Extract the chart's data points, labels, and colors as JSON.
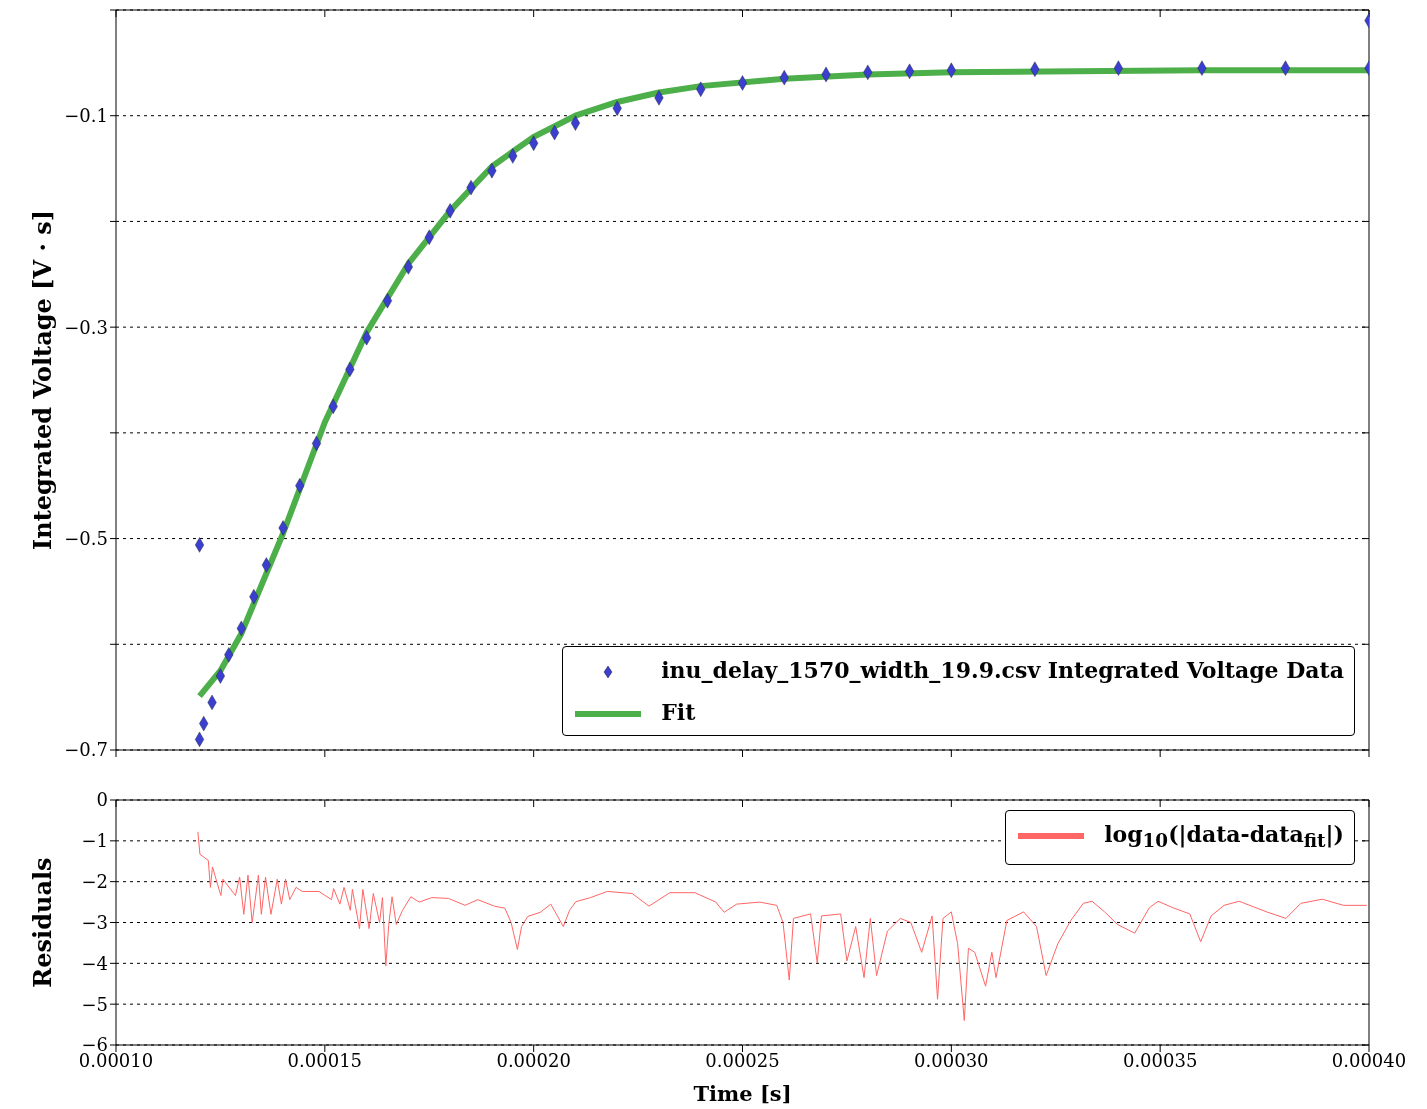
{
  "chart_data": [
    {
      "type": "scatter",
      "ylabel": "Integrated Voltage [V · s]",
      "xlim": [
        0.0001,
        0.0004
      ],
      "xticks": [
        0.0001,
        0.00015,
        0.0002,
        0.00025,
        0.0003,
        0.00035,
        0.0004
      ],
      "ylim": [
        -0.7,
        0
      ],
      "yticks": [
        {
          "value": -0.7,
          "label": "−0.7"
        },
        {
          "value": -0.6,
          "label": null
        },
        {
          "value": -0.5,
          "label": "−0.5"
        },
        {
          "value": -0.4,
          "label": null
        },
        {
          "value": -0.3,
          "label": "−0.3"
        },
        {
          "value": -0.2,
          "label": null
        },
        {
          "value": -0.1,
          "label": "−0.1"
        },
        {
          "value": 0,
          "label": null
        }
      ],
      "grid": "y",
      "legend": "bottom right",
      "tick_labels": "y",
      "series": [
        {
          "name": "inu_delay_1570_width_19.9.csv Integrated Voltage Data",
          "type": "scatter",
          "marker": "diamond",
          "color": "#3a3fd0",
          "x": [
            0.00012,
            0.00012,
            0.000121,
            0.000123,
            0.000125,
            0.000127,
            0.00013,
            0.000133,
            0.000136,
            0.00014,
            0.000144,
            0.000148,
            0.000152,
            0.000156,
            0.00016,
            0.000165,
            0.00017,
            0.000175,
            0.00018,
            0.000185,
            0.00019,
            0.000195,
            0.0002,
            0.000205,
            0.00021,
            0.00022,
            0.00023,
            0.00024,
            0.00025,
            0.00026,
            0.00027,
            0.00028,
            0.00029,
            0.0003,
            0.00032,
            0.00034,
            0.00036,
            0.00038,
            0.0004,
            0.0004
          ],
          "values": [
            -0.506,
            -0.69,
            -0.675,
            -0.655,
            -0.63,
            -0.61,
            -0.585,
            -0.555,
            -0.525,
            -0.49,
            -0.45,
            -0.41,
            -0.375,
            -0.34,
            -0.31,
            -0.275,
            -0.243,
            -0.215,
            -0.19,
            -0.168,
            -0.152,
            -0.138,
            -0.126,
            -0.116,
            -0.107,
            -0.093,
            -0.083,
            -0.075,
            -0.069,
            -0.064,
            -0.061,
            -0.059,
            -0.058,
            -0.057,
            -0.056,
            -0.055,
            -0.055,
            -0.055,
            -0.055,
            -0.01
          ]
        },
        {
          "name": "Fit",
          "type": "line",
          "color": "#4daf4a",
          "x": [
            0.00012,
            0.000125,
            0.00013,
            0.00014,
            0.00015,
            0.00016,
            0.00017,
            0.00018,
            0.00019,
            0.0002,
            0.00021,
            0.00022,
            0.00023,
            0.00024,
            0.00026,
            0.00028,
            0.0003,
            0.00033,
            0.00036,
            0.0004
          ],
          "values": [
            -0.649,
            -0.625,
            -0.59,
            -0.495,
            -0.39,
            -0.305,
            -0.24,
            -0.19,
            -0.148,
            -0.12,
            -0.1,
            -0.087,
            -0.078,
            -0.072,
            -0.065,
            -0.061,
            -0.059,
            -0.058,
            -0.057,
            -0.057
          ]
        }
      ]
    },
    {
      "type": "line",
      "xlabel": "Time [s]",
      "ylabel": "Residuals",
      "xlim": [
        0.0001,
        0.0004
      ],
      "xticks": [
        {
          "value": 0.0001,
          "label": "0.00010"
        },
        {
          "value": 0.00015,
          "label": "0.00015"
        },
        {
          "value": 0.0002,
          "label": "0.00020"
        },
        {
          "value": 0.00025,
          "label": "0.00025"
        },
        {
          "value": 0.0003,
          "label": "0.00030"
        },
        {
          "value": 0.00035,
          "label": "0.00035"
        },
        {
          "value": 0.0004,
          "label": "0.00040"
        }
      ],
      "ylim": [
        -6,
        0
      ],
      "yticks": [
        {
          "value": -6,
          "label": "−6"
        },
        {
          "value": -5,
          "label": "−5"
        },
        {
          "value": -4,
          "label": "−4"
        },
        {
          "value": -3,
          "label": "−3"
        },
        {
          "value": -2,
          "label": "−2"
        },
        {
          "value": -1,
          "label": "−1"
        },
        0
      ],
      "grid": "y",
      "legend": "top right",
      "series": [
        {
          "name": "log$_{10}$(|data-data$_{fit}$|)",
          "color": "#ff6666",
          "x": [
            0.0001196,
            0.0001201,
            0.0001221,
            0.0001226,
            0.0001231,
            0.0001251,
            0.0001256,
            0.0001286,
            0.0001296,
            0.0001306,
            0.0001316,
            0.0001326,
            0.0001341,
            0.0001348,
            0.0001358,
            0.0001371,
            0.0001386,
            0.0001396,
            0.0001406,
            0.0001416,
            0.0001431,
            0.0001446,
            0.0001486,
            0.0001516,
            0.0001521,
            0.0001536,
            0.0001546,
            0.0001561,
            0.0001566,
            0.0001583,
            0.0001591,
            0.0001606,
            0.0001616,
            0.0001631,
            0.0001638,
            0.0001646,
            0.0001653,
            0.0001661,
            0.0001671,
            0.0001686,
            0.0001706,
            0.0001726,
            0.0001756,
            0.0001796,
            0.0001836,
            0.0001866,
            0.0001906,
            0.0001931,
            0.0001946,
            0.0001961,
            0.0001971,
            0.0001986,
            0.0002016,
            0.0002041,
            0.0002071,
            0.0002086,
            0.0002101,
            0.0002136,
            0.0002176,
            0.0002236,
            0.0002276,
            0.0002326,
            0.0002386,
            0.0002436,
            0.0002456,
            0.0002486,
            0.0002541,
            0.0002582,
            0.0002597,
            0.0002612,
            0.0002622,
            0.0002663,
            0.0002679,
            0.0002689,
            0.0002735,
            0.000275,
            0.0002771,
            0.0002791,
            0.0002806,
            0.0002821,
            0.0002847,
            0.0002878,
            0.0002903,
            0.0002929,
            0.0002954,
            0.0002967,
            0.000298,
            0.0003,
            0.0003015,
            0.0003031,
            0.0003041,
            0.0003056,
            0.0003082,
            0.0003097,
            0.0003107,
            0.0003133,
            0.0003173,
            0.0003204,
            0.0003227,
            0.0003255,
            0.0003286,
            0.0003316,
            0.0003337,
            0.0003367,
            0.0003398,
            0.0003439,
            0.0003474,
            0.0003495,
            0.0003531,
            0.0003571,
            0.0003597,
            0.0003622,
            0.0003653,
            0.0003689,
            0.0003755,
            0.0003801,
            0.0003837,
            0.0003888,
            0.0003939,
            0.0003995
          ],
          "values": [
            -0.78,
            -1.33,
            -1.48,
            -2.14,
            -1.64,
            -2.34,
            -1.94,
            -2.34,
            -1.89,
            -2.8,
            -1.84,
            -3.0,
            -1.84,
            -2.8,
            -1.89,
            -2.8,
            -1.94,
            -2.55,
            -1.94,
            -2.44,
            -2.14,
            -2.24,
            -2.24,
            -2.44,
            -2.17,
            -2.55,
            -2.14,
            -2.7,
            -2.19,
            -3.15,
            -2.19,
            -3.15,
            -2.29,
            -3.0,
            -2.39,
            -4.06,
            -3.05,
            -2.37,
            -3.05,
            -2.7,
            -2.37,
            -2.5,
            -2.39,
            -2.41,
            -2.58,
            -2.44,
            -2.6,
            -2.65,
            -3.0,
            -3.66,
            -3.1,
            -2.85,
            -2.75,
            -2.55,
            -3.1,
            -2.7,
            -2.49,
            -2.39,
            -2.24,
            -2.29,
            -2.6,
            -2.27,
            -2.27,
            -2.5,
            -2.75,
            -2.55,
            -2.5,
            -2.58,
            -3.0,
            -4.41,
            -2.9,
            -2.79,
            -3.99,
            -2.84,
            -2.79,
            -3.94,
            -3.1,
            -4.35,
            -2.9,
            -4.3,
            -3.21,
            -2.9,
            -3.0,
            -3.73,
            -2.84,
            -4.88,
            -2.9,
            -2.74,
            -3.52,
            -5.4,
            -3.63,
            -3.73,
            -4.56,
            -3.73,
            -4.35,
            -2.95,
            -2.74,
            -3.1,
            -4.3,
            -3.52,
            -2.95,
            -2.53,
            -2.48,
            -2.74,
            -3.05,
            -3.26,
            -2.64,
            -2.48,
            -2.64,
            -2.79,
            -3.47,
            -2.84,
            -2.58,
            -2.48,
            -2.74,
            -2.9,
            -2.53,
            -2.43,
            -2.58,
            -2.58
          ]
        }
      ]
    }
  ]
}
